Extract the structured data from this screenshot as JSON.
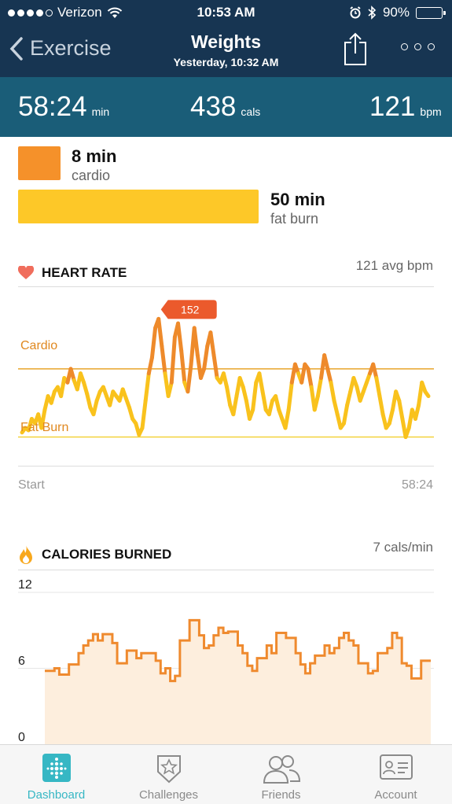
{
  "status_bar": {
    "carrier": "Verizon",
    "time": "10:53 AM",
    "battery": "90%"
  },
  "nav": {
    "back_label": "Exercise",
    "title": "Weights",
    "subtitle": "Yesterday, 10:32 AM"
  },
  "summary": {
    "duration": {
      "value": "58:24",
      "unit": "min"
    },
    "calories": {
      "value": "438",
      "unit": "cals"
    },
    "heart_rate": {
      "value": "121",
      "unit": "bpm"
    }
  },
  "zones": [
    {
      "value": "8 min",
      "name": "cardio",
      "minutes": 8,
      "color": "#f5912a"
    },
    {
      "value": "50 min",
      "name": "fat burn",
      "minutes": 50,
      "color": "#fdc828"
    }
  ],
  "heart_rate_chart": {
    "title": "HEART RATE",
    "avg": "121 avg bpm",
    "cardio_label": "Cardio",
    "fatburn_label": "Fat Burn",
    "peak_label": "152",
    "start_label": "Start",
    "end_label": "58:24",
    "colors": {
      "fatburn": "#f9c21d",
      "cardio": "#ee8a2b",
      "zone_line": "#e8a52b",
      "peak": "#eb5a2c"
    }
  },
  "calories_chart": {
    "title": "CALORIES BURNED",
    "rate": "7 cals/min",
    "y_ticks": [
      "12",
      "6",
      "0"
    ],
    "colors": {
      "line": "#ef8a2e",
      "fill": "#fdeedd"
    }
  },
  "chart_data": [
    {
      "type": "line",
      "name": "heart rate",
      "y_thresholds": {
        "cardio": 130,
        "fat_burn": 100
      },
      "ylim": [
        95,
        158
      ],
      "values": [
        102,
        104,
        103,
        108,
        106,
        110,
        104,
        112,
        118,
        115,
        120,
        122,
        118,
        126,
        124,
        130,
        125,
        121,
        128,
        124,
        119,
        113,
        110,
        116,
        120,
        122,
        118,
        114,
        120,
        118,
        116,
        121,
        117,
        113,
        108,
        106,
        101,
        104,
        116,
        128,
        135,
        148,
        152,
        140,
        128,
        118,
        124,
        144,
        150,
        138,
        124,
        120,
        132,
        148,
        136,
        126,
        130,
        140,
        146,
        136,
        126,
        124,
        128,
        122,
        114,
        110,
        118,
        126,
        122,
        116,
        108,
        112,
        124,
        128,
        120,
        112,
        110,
        116,
        118,
        112,
        108,
        104,
        112,
        124,
        132,
        128,
        124,
        132,
        130,
        122,
        112,
        118,
        126,
        136,
        130,
        124,
        116,
        110,
        104,
        106,
        114,
        120,
        126,
        122,
        116,
        120,
        124,
        128,
        132,
        126,
        118,
        110,
        104,
        106,
        112,
        120,
        116,
        108,
        100,
        104,
        112,
        108,
        114,
        124,
        120,
        118
      ],
      "annotation": "152"
    },
    {
      "type": "area",
      "name": "calories burned",
      "ylim": [
        0,
        12
      ],
      "values": [
        5.8,
        5.8,
        6,
        5.5,
        5.5,
        6.3,
        6.3,
        7.2,
        7.8,
        8.2,
        8.7,
        8.2,
        8.7,
        8.7,
        8,
        6.4,
        6.4,
        7.4,
        7.4,
        6.8,
        7.2,
        7.2,
        7.2,
        6.6,
        5.6,
        6,
        5,
        5.4,
        8.2,
        8.2,
        9.8,
        9.8,
        8.6,
        7.6,
        7.8,
        8.6,
        9.2,
        8.8,
        8.9,
        8.9,
        7.8,
        7.2,
        6.2,
        5.8,
        6.8,
        6.8,
        7.8,
        7.2,
        8.8,
        8.8,
        8.4,
        8.4,
        7.2,
        6.3,
        5.6,
        6.4,
        7,
        7,
        7.8,
        7.2,
        7.6,
        8.4,
        8.8,
        8.2,
        7.8,
        6.4,
        6.4,
        5.6,
        5.8,
        7.2,
        7.2,
        7.6,
        8.8,
        8.4,
        6.4,
        6.2,
        5.2,
        5.2,
        6.6,
        6.6
      ]
    }
  ]
}
